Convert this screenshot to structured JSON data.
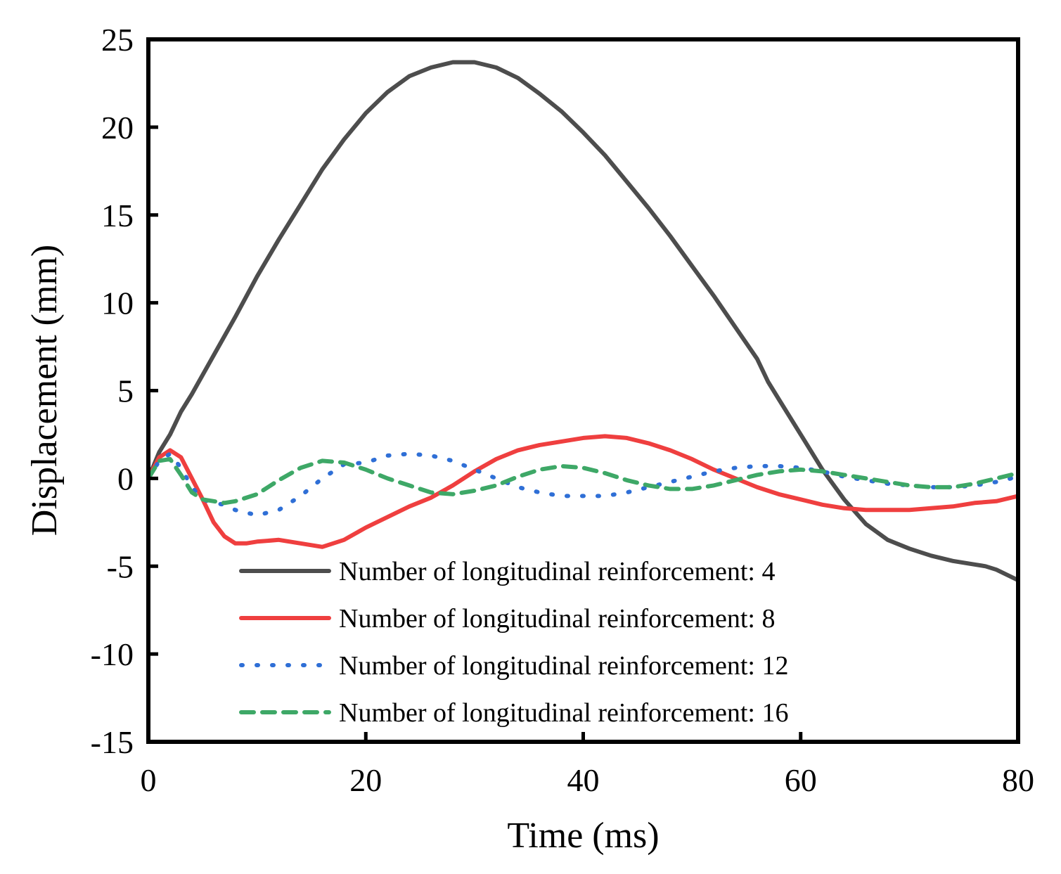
{
  "chart_data": {
    "type": "line",
    "title": "",
    "xlabel": "Time (ms)",
    "ylabel": "Displacement (mm)",
    "xlim": [
      0,
      80
    ],
    "ylim": [
      -15,
      25
    ],
    "xticks": [
      0,
      20,
      40,
      60,
      80
    ],
    "yticks": [
      -15,
      -10,
      -5,
      0,
      5,
      10,
      15,
      20,
      25
    ],
    "grid": false,
    "legend_position": "bottom-right",
    "series": [
      {
        "name": "Number of longitudinal reinforcement: 4",
        "color": "#4d4d4d",
        "style": "solid",
        "x": [
          0,
          1,
          2,
          3,
          4,
          6,
          8,
          10,
          12,
          14,
          16,
          18,
          20,
          22,
          24,
          26,
          28,
          30,
          32,
          34,
          36,
          38,
          40,
          42,
          44,
          46,
          48,
          50,
          52,
          54,
          56,
          57,
          58,
          60,
          62,
          64,
          66,
          68,
          70,
          72,
          74,
          76,
          77,
          78,
          80
        ],
        "y": [
          0,
          1.5,
          2.5,
          3.8,
          4.8,
          7.0,
          9.2,
          11.5,
          13.6,
          15.6,
          17.6,
          19.3,
          20.8,
          22.0,
          22.9,
          23.4,
          23.7,
          23.7,
          23.4,
          22.8,
          21.9,
          20.9,
          19.7,
          18.4,
          16.9,
          15.4,
          13.8,
          12.1,
          10.4,
          8.6,
          6.8,
          5.5,
          4.5,
          2.5,
          0.5,
          -1.2,
          -2.6,
          -3.5,
          -4.0,
          -4.4,
          -4.7,
          -4.9,
          -5.0,
          -5.2,
          -5.8
        ]
      },
      {
        "name": "Number of longitudinal reinforcement: 8",
        "color": "#ef3f3f",
        "style": "solid",
        "x": [
          0,
          1,
          2,
          3,
          4,
          5,
          6,
          7,
          8,
          9,
          10,
          12,
          14,
          16,
          18,
          20,
          22,
          24,
          26,
          28,
          30,
          32,
          34,
          36,
          38,
          40,
          42,
          44,
          46,
          48,
          50,
          52,
          54,
          56,
          58,
          60,
          62,
          64,
          66,
          68,
          70,
          72,
          74,
          76,
          78,
          80
        ],
        "y": [
          0,
          1.2,
          1.6,
          1.2,
          0.0,
          -1.2,
          -2.5,
          -3.3,
          -3.7,
          -3.7,
          -3.6,
          -3.5,
          -3.7,
          -3.9,
          -3.5,
          -2.8,
          -2.2,
          -1.6,
          -1.1,
          -0.4,
          0.4,
          1.1,
          1.6,
          1.9,
          2.1,
          2.3,
          2.4,
          2.3,
          2.0,
          1.6,
          1.1,
          0.5,
          0.0,
          -0.5,
          -0.9,
          -1.2,
          -1.5,
          -1.7,
          -1.8,
          -1.8,
          -1.8,
          -1.7,
          -1.6,
          -1.4,
          -1.3,
          -1.0
        ]
      },
      {
        "name": "Number of longitudinal reinforcement: 12",
        "color": "#2f6fd6",
        "style": "dotted",
        "x": [
          0,
          1,
          2,
          3,
          4,
          5,
          6,
          7,
          8,
          10,
          12,
          14,
          16,
          18,
          20,
          22,
          24,
          26,
          28,
          30,
          32,
          34,
          36,
          38,
          40,
          42,
          44,
          46,
          48,
          50,
          52,
          54,
          56,
          58,
          60,
          62,
          64,
          66,
          68,
          70,
          72,
          74,
          76,
          78,
          80
        ],
        "y": [
          0,
          1.0,
          1.4,
          0.6,
          -0.5,
          -1.2,
          -1.4,
          -1.5,
          -1.8,
          -2.1,
          -1.8,
          -1.0,
          0.0,
          0.8,
          0.9,
          1.3,
          1.4,
          1.3,
          1.0,
          0.5,
          0.0,
          -0.5,
          -0.8,
          -1.0,
          -1.0,
          -1.0,
          -0.8,
          -0.5,
          -0.2,
          0.1,
          0.4,
          0.6,
          0.7,
          0.7,
          0.6,
          0.4,
          0.1,
          -0.1,
          -0.3,
          -0.4,
          -0.5,
          -0.5,
          -0.4,
          -0.2,
          0.1
        ]
      },
      {
        "name": "Number of longitudinal reinforcement: 16",
        "color": "#3ea867",
        "style": "dashed",
        "x": [
          0,
          1,
          2,
          3,
          4,
          5,
          6,
          7,
          8,
          10,
          12,
          14,
          16,
          18,
          20,
          22,
          24,
          26,
          28,
          30,
          32,
          34,
          36,
          38,
          40,
          42,
          44,
          46,
          48,
          50,
          52,
          54,
          56,
          58,
          60,
          62,
          64,
          66,
          68,
          70,
          72,
          74,
          76,
          78,
          80
        ],
        "y": [
          0,
          1.0,
          1.1,
          0.2,
          -0.8,
          -1.2,
          -1.3,
          -1.4,
          -1.3,
          -0.9,
          -0.1,
          0.6,
          1.0,
          0.9,
          0.5,
          0.0,
          -0.4,
          -0.8,
          -0.9,
          -0.7,
          -0.4,
          0.1,
          0.5,
          0.7,
          0.6,
          0.3,
          -0.1,
          -0.4,
          -0.6,
          -0.6,
          -0.4,
          -0.1,
          0.2,
          0.4,
          0.5,
          0.4,
          0.2,
          0.0,
          -0.2,
          -0.4,
          -0.5,
          -0.5,
          -0.3,
          0.0,
          0.3
        ]
      }
    ]
  }
}
